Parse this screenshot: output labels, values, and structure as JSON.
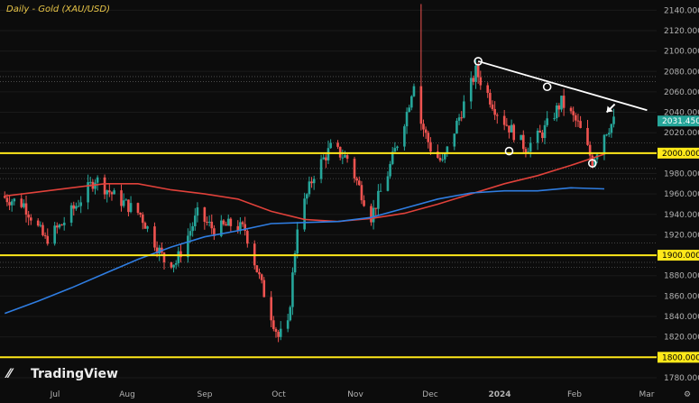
{
  "chart_data": {
    "type": "candlestick",
    "title": "Daily - Gold (XAU/USD)",
    "watermark": "TradingView",
    "x_labels": [
      "Jul",
      "Aug",
      "Sep",
      "Oct",
      "Nov",
      "Dec",
      "2024",
      "Feb",
      "Mar"
    ],
    "y_ticks": [
      1780,
      1800,
      1820,
      1840,
      1860,
      1880,
      1900,
      1920,
      1940,
      1960,
      1980,
      2000,
      2020,
      2040,
      2060,
      2080,
      2100,
      2120,
      2140
    ],
    "y_tick_labels": [
      "1780.000",
      "1800.000",
      "1820.000",
      "1840.000",
      "1860.000",
      "1880.000",
      "1900.000",
      "1920.000",
      "1940.000",
      "1960.000",
      "1980.000",
      "2000.000",
      "2020.000",
      "2040.000",
      "2060.000",
      "2080.000",
      "2100.000",
      "2120.000",
      "2140.000"
    ],
    "ylim": [
      1772,
      2155
    ],
    "last_price": 2031.45,
    "last_price_label": "2031.450",
    "support_lines": [
      {
        "value": 2000,
        "label": "2000.000"
      },
      {
        "value": 1900,
        "label": "1900.000"
      },
      {
        "value": 1800,
        "label": "1800.000"
      }
    ],
    "dotted_levels": [
      2075,
      2070,
      2010,
      1985,
      1975,
      1912,
      1893,
      1888
    ],
    "series": [
      {
        "name": "MA red",
        "color": "#e0413a",
        "points": [
          [
            "2023-06-12",
            1958
          ],
          [
            "2023-06-26",
            1962
          ],
          [
            "2023-07-10",
            1966
          ],
          [
            "2023-07-24",
            1970
          ],
          [
            "2023-08-07",
            1970
          ],
          [
            "2023-08-21",
            1964
          ],
          [
            "2023-09-04",
            1960
          ],
          [
            "2023-09-18",
            1955
          ],
          [
            "2023-10-02",
            1943
          ],
          [
            "2023-10-16",
            1935
          ],
          [
            "2023-10-30",
            1933
          ],
          [
            "2023-11-13",
            1936
          ],
          [
            "2023-11-27",
            1941
          ],
          [
            "2023-12-11",
            1950
          ],
          [
            "2023-12-25",
            1960
          ],
          [
            "2024-01-08",
            1970
          ],
          [
            "2024-01-22",
            1978
          ],
          [
            "2024-02-05",
            1988
          ],
          [
            "2024-02-19",
            1999
          ]
        ]
      },
      {
        "name": "MA blue",
        "color": "#2f7de1",
        "points": [
          [
            "2023-06-12",
            1843
          ],
          [
            "2023-06-26",
            1855
          ],
          [
            "2023-07-10",
            1868
          ],
          [
            "2023-07-24",
            1882
          ],
          [
            "2023-08-07",
            1896
          ],
          [
            "2023-08-21",
            1908
          ],
          [
            "2023-09-04",
            1918
          ],
          [
            "2023-09-18",
            1924
          ],
          [
            "2023-10-02",
            1931
          ],
          [
            "2023-10-16",
            1932
          ],
          [
            "2023-10-30",
            1933
          ],
          [
            "2023-11-13",
            1937
          ],
          [
            "2023-11-27",
            1946
          ],
          [
            "2023-12-11",
            1955
          ],
          [
            "2023-12-25",
            1961
          ],
          [
            "2024-01-08",
            1963
          ],
          [
            "2024-01-22",
            1963
          ],
          [
            "2024-02-05",
            1966
          ],
          [
            "2024-02-19",
            1965
          ]
        ]
      }
    ],
    "trendline": {
      "from": [
        "2023-12-28",
        2090
      ],
      "to": [
        "2024-03-08",
        2042
      ]
    },
    "circle_markers": [
      [
        "2023-12-28",
        2090
      ],
      [
        "2024-01-26",
        2065
      ],
      [
        "2024-01-10",
        2002
      ],
      [
        "2024-02-14",
        1990
      ]
    ],
    "arrow_marker": [
      "2024-02-20",
      2040
    ],
    "candles": []
  }
}
